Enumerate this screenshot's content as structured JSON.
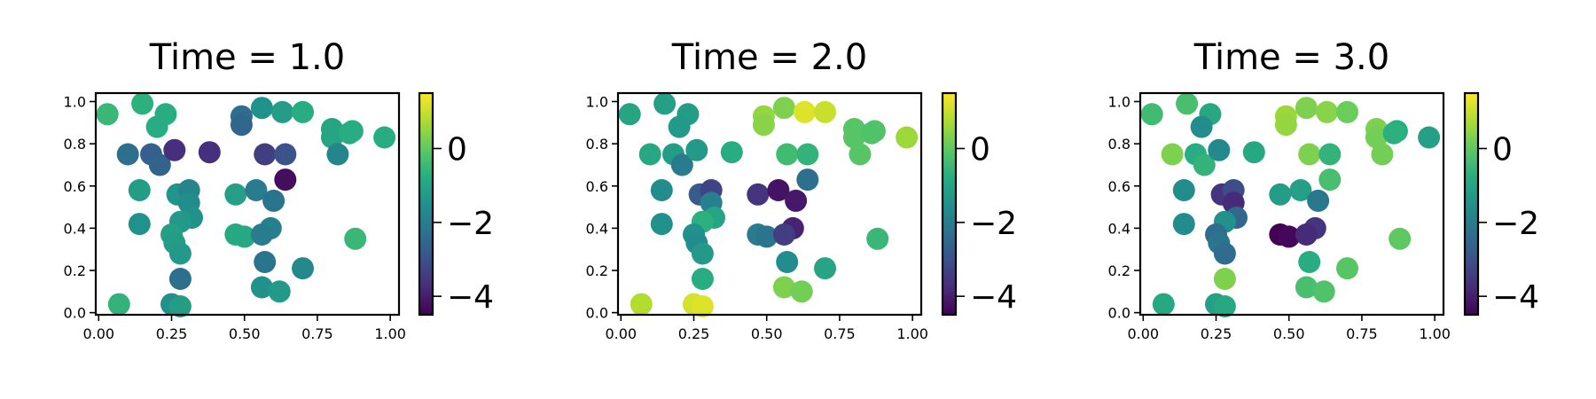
{
  "chart_data": [
    {
      "type": "scatter",
      "title": "Time = 1.0",
      "xlim": [
        -0.01,
        1.03
      ],
      "ylim": [
        -0.01,
        1.04
      ],
      "xticks": [
        "0.00",
        "0.25",
        "0.50",
        "0.75",
        "1.00"
      ],
      "yticks": [
        "0.0",
        "0.2",
        "0.4",
        "0.6",
        "0.8",
        "1.0"
      ],
      "colorbar": {
        "colormap": "viridis",
        "range": [
          -4.5,
          1.5
        ],
        "ticks": [
          "0",
          "−2",
          "−4"
        ]
      },
      "points": [
        {
          "x": 0.03,
          "y": 0.94,
          "c": -0.5
        },
        {
          "x": 0.15,
          "y": 0.99,
          "c": -0.7
        },
        {
          "x": 0.23,
          "y": 0.94,
          "c": -0.8
        },
        {
          "x": 0.2,
          "y": 0.88,
          "c": -0.8
        },
        {
          "x": 0.1,
          "y": 0.75,
          "c": -2.3
        },
        {
          "x": 0.18,
          "y": 0.75,
          "c": -2.7
        },
        {
          "x": 0.21,
          "y": 0.7,
          "c": -2.6
        },
        {
          "x": 0.26,
          "y": 0.77,
          "c": -3.7
        },
        {
          "x": 0.38,
          "y": 0.76,
          "c": -3.7
        },
        {
          "x": 0.14,
          "y": 0.58,
          "c": -1.2
        },
        {
          "x": 0.14,
          "y": 0.42,
          "c": -1.5
        },
        {
          "x": 0.27,
          "y": 0.56,
          "c": -1.4
        },
        {
          "x": 0.31,
          "y": 0.58,
          "c": -1.8
        },
        {
          "x": 0.31,
          "y": 0.52,
          "c": -1.6
        },
        {
          "x": 0.32,
          "y": 0.45,
          "c": -1.5
        },
        {
          "x": 0.28,
          "y": 0.43,
          "c": -1.3
        },
        {
          "x": 0.25,
          "y": 0.37,
          "c": -1.1
        },
        {
          "x": 0.26,
          "y": 0.33,
          "c": -1.2
        },
        {
          "x": 0.28,
          "y": 0.28,
          "c": -1.3
        },
        {
          "x": 0.28,
          "y": 0.16,
          "c": -2.3
        },
        {
          "x": 0.25,
          "y": 0.04,
          "c": -1.5
        },
        {
          "x": 0.28,
          "y": 0.03,
          "c": -1.2
        },
        {
          "x": 0.07,
          "y": 0.04,
          "c": -0.6
        },
        {
          "x": 0.49,
          "y": 0.93,
          "c": -2.4
        },
        {
          "x": 0.49,
          "y": 0.89,
          "c": -2.5
        },
        {
          "x": 0.56,
          "y": 0.97,
          "c": -1.5
        },
        {
          "x": 0.63,
          "y": 0.95,
          "c": -1.2
        },
        {
          "x": 0.7,
          "y": 0.95,
          "c": -0.8
        },
        {
          "x": 0.57,
          "y": 0.75,
          "c": -3.4
        },
        {
          "x": 0.64,
          "y": 0.75,
          "c": -3.0
        },
        {
          "x": 0.64,
          "y": 0.63,
          "c": -4.3
        },
        {
          "x": 0.47,
          "y": 0.56,
          "c": -1.1
        },
        {
          "x": 0.54,
          "y": 0.58,
          "c": -2.0
        },
        {
          "x": 0.6,
          "y": 0.53,
          "c": -2.2
        },
        {
          "x": 0.47,
          "y": 0.37,
          "c": -0.9
        },
        {
          "x": 0.5,
          "y": 0.36,
          "c": -0.9
        },
        {
          "x": 0.59,
          "y": 0.4,
          "c": -1.9
        },
        {
          "x": 0.56,
          "y": 0.37,
          "c": -2.0
        },
        {
          "x": 0.57,
          "y": 0.24,
          "c": -2.2
        },
        {
          "x": 0.56,
          "y": 0.12,
          "c": -1.5
        },
        {
          "x": 0.62,
          "y": 0.1,
          "c": -1.3
        },
        {
          "x": 0.7,
          "y": 0.21,
          "c": -1.7
        },
        {
          "x": 0.8,
          "y": 0.87,
          "c": -1.0
        },
        {
          "x": 0.8,
          "y": 0.83,
          "c": -1.0
        },
        {
          "x": 0.87,
          "y": 0.86,
          "c": -0.8
        },
        {
          "x": 0.86,
          "y": 0.85,
          "c": -0.8
        },
        {
          "x": 0.82,
          "y": 0.75,
          "c": -1.8
        },
        {
          "x": 0.98,
          "y": 0.83,
          "c": -0.8
        },
        {
          "x": 0.88,
          "y": 0.35,
          "c": -0.5
        }
      ]
    },
    {
      "type": "scatter",
      "title": "Time = 2.0",
      "xlim": [
        -0.01,
        1.03
      ],
      "ylim": [
        -0.01,
        1.04
      ],
      "xticks": [
        "0.00",
        "0.25",
        "0.50",
        "0.75",
        "1.00"
      ],
      "yticks": [
        "0.0",
        "0.2",
        "0.4",
        "0.6",
        "0.8",
        "1.0"
      ],
      "colorbar": {
        "colormap": "viridis",
        "range": [
          -4.5,
          1.5
        ],
        "ticks": [
          "0",
          "−2",
          "−4"
        ]
      },
      "points": [
        {
          "x": 0.03,
          "y": 0.94,
          "c": -1.0
        },
        {
          "x": 0.15,
          "y": 0.99,
          "c": -1.1
        },
        {
          "x": 0.23,
          "y": 0.94,
          "c": -1.2
        },
        {
          "x": 0.2,
          "y": 0.88,
          "c": -1.3
        },
        {
          "x": 0.1,
          "y": 0.75,
          "c": -0.9
        },
        {
          "x": 0.18,
          "y": 0.75,
          "c": -1.2
        },
        {
          "x": 0.21,
          "y": 0.7,
          "c": -2.0
        },
        {
          "x": 0.26,
          "y": 0.77,
          "c": -1.3
        },
        {
          "x": 0.38,
          "y": 0.76,
          "c": -0.8
        },
        {
          "x": 0.14,
          "y": 0.58,
          "c": -1.6
        },
        {
          "x": 0.14,
          "y": 0.42,
          "c": -1.5
        },
        {
          "x": 0.27,
          "y": 0.56,
          "c": -2.8
        },
        {
          "x": 0.31,
          "y": 0.58,
          "c": -3.3
        },
        {
          "x": 0.31,
          "y": 0.52,
          "c": -1.9
        },
        {
          "x": 0.32,
          "y": 0.45,
          "c": -1.0
        },
        {
          "x": 0.28,
          "y": 0.43,
          "c": -0.7
        },
        {
          "x": 0.25,
          "y": 0.37,
          "c": -1.5
        },
        {
          "x": 0.26,
          "y": 0.33,
          "c": -1.6
        },
        {
          "x": 0.28,
          "y": 0.28,
          "c": -1.3
        },
        {
          "x": 0.28,
          "y": 0.16,
          "c": -0.8
        },
        {
          "x": 0.25,
          "y": 0.04,
          "c": 1.1
        },
        {
          "x": 0.28,
          "y": 0.03,
          "c": 1.2
        },
        {
          "x": 0.07,
          "y": 0.04,
          "c": 0.8
        },
        {
          "x": 0.49,
          "y": 0.93,
          "c": 0.5
        },
        {
          "x": 0.49,
          "y": 0.89,
          "c": 0.4
        },
        {
          "x": 0.56,
          "y": 0.97,
          "c": 0.3
        },
        {
          "x": 0.63,
          "y": 0.95,
          "c": 1.2
        },
        {
          "x": 0.7,
          "y": 0.95,
          "c": 1.0
        },
        {
          "x": 0.57,
          "y": 0.75,
          "c": -0.4
        },
        {
          "x": 0.64,
          "y": 0.75,
          "c": -0.6
        },
        {
          "x": 0.64,
          "y": 0.63,
          "c": -2.3
        },
        {
          "x": 0.47,
          "y": 0.56,
          "c": -3.6
        },
        {
          "x": 0.54,
          "y": 0.58,
          "c": -4.2
        },
        {
          "x": 0.6,
          "y": 0.53,
          "c": -4.1
        },
        {
          "x": 0.47,
          "y": 0.37,
          "c": -2.0
        },
        {
          "x": 0.5,
          "y": 0.36,
          "c": -2.2
        },
        {
          "x": 0.59,
          "y": 0.4,
          "c": -3.9
        },
        {
          "x": 0.56,
          "y": 0.37,
          "c": -3.4
        },
        {
          "x": 0.57,
          "y": 0.24,
          "c": -1.6
        },
        {
          "x": 0.56,
          "y": 0.12,
          "c": 0.3
        },
        {
          "x": 0.62,
          "y": 0.1,
          "c": 0.2
        },
        {
          "x": 0.7,
          "y": 0.21,
          "c": -1.0
        },
        {
          "x": 0.8,
          "y": 0.87,
          "c": -0.1
        },
        {
          "x": 0.8,
          "y": 0.83,
          "c": -0.1
        },
        {
          "x": 0.87,
          "y": 0.86,
          "c": -0.2
        },
        {
          "x": 0.86,
          "y": 0.85,
          "c": -0.2
        },
        {
          "x": 0.82,
          "y": 0.75,
          "c": -0.1
        },
        {
          "x": 0.98,
          "y": 0.83,
          "c": 0.6
        },
        {
          "x": 0.88,
          "y": 0.35,
          "c": -0.5
        }
      ]
    },
    {
      "type": "scatter",
      "title": "Time = 3.0",
      "xlim": [
        -0.01,
        1.03
      ],
      "ylim": [
        -0.01,
        1.04
      ],
      "xticks": [
        "0.00",
        "0.25",
        "0.50",
        "0.75",
        "1.00"
      ],
      "yticks": [
        "0.0",
        "0.2",
        "0.4",
        "0.6",
        "0.8",
        "1.0"
      ],
      "colorbar": {
        "colormap": "viridis",
        "range": [
          -4.5,
          1.5
        ],
        "ticks": [
          "0",
          "−2",
          "−4"
        ]
      },
      "points": [
        {
          "x": 0.03,
          "y": 0.94,
          "c": -0.4
        },
        {
          "x": 0.15,
          "y": 0.99,
          "c": -0.3
        },
        {
          "x": 0.23,
          "y": 0.94,
          "c": -0.9
        },
        {
          "x": 0.2,
          "y": 0.88,
          "c": -1.6
        },
        {
          "x": 0.1,
          "y": 0.75,
          "c": 0.3
        },
        {
          "x": 0.18,
          "y": 0.75,
          "c": -0.8
        },
        {
          "x": 0.21,
          "y": 0.7,
          "c": -0.6
        },
        {
          "x": 0.26,
          "y": 0.77,
          "c": -1.7
        },
        {
          "x": 0.38,
          "y": 0.76,
          "c": -0.9
        },
        {
          "x": 0.14,
          "y": 0.58,
          "c": -1.6
        },
        {
          "x": 0.14,
          "y": 0.42,
          "c": -1.6
        },
        {
          "x": 0.27,
          "y": 0.56,
          "c": -3.6
        },
        {
          "x": 0.31,
          "y": 0.58,
          "c": -3.1
        },
        {
          "x": 0.31,
          "y": 0.52,
          "c": -3.8
        },
        {
          "x": 0.32,
          "y": 0.45,
          "c": -2.5
        },
        {
          "x": 0.28,
          "y": 0.43,
          "c": -1.5
        },
        {
          "x": 0.25,
          "y": 0.37,
          "c": -2.4
        },
        {
          "x": 0.26,
          "y": 0.33,
          "c": -2.2
        },
        {
          "x": 0.28,
          "y": 0.28,
          "c": -2.4
        },
        {
          "x": 0.28,
          "y": 0.16,
          "c": 0.3
        },
        {
          "x": 0.25,
          "y": 0.04,
          "c": -1.1
        },
        {
          "x": 0.28,
          "y": 0.03,
          "c": -0.9
        },
        {
          "x": 0.07,
          "y": 0.04,
          "c": -0.9
        },
        {
          "x": 0.49,
          "y": 0.93,
          "c": 0.6
        },
        {
          "x": 0.49,
          "y": 0.89,
          "c": 0.5
        },
        {
          "x": 0.56,
          "y": 0.97,
          "c": 0.3
        },
        {
          "x": 0.63,
          "y": 0.95,
          "c": 0.4
        },
        {
          "x": 0.7,
          "y": 0.95,
          "c": 0.1
        },
        {
          "x": 0.57,
          "y": 0.75,
          "c": 0.3
        },
        {
          "x": 0.64,
          "y": 0.75,
          "c": -0.6
        },
        {
          "x": 0.64,
          "y": 0.63,
          "c": -0.3
        },
        {
          "x": 0.47,
          "y": 0.56,
          "c": -1.2
        },
        {
          "x": 0.54,
          "y": 0.58,
          "c": -1.1
        },
        {
          "x": 0.6,
          "y": 0.53,
          "c": -2.1
        },
        {
          "x": 0.47,
          "y": 0.37,
          "c": -4.5
        },
        {
          "x": 0.5,
          "y": 0.36,
          "c": -4.4
        },
        {
          "x": 0.59,
          "y": 0.4,
          "c": -3.6
        },
        {
          "x": 0.56,
          "y": 0.37,
          "c": -3.8
        },
        {
          "x": 0.57,
          "y": 0.24,
          "c": -0.8
        },
        {
          "x": 0.56,
          "y": 0.12,
          "c": -0.3
        },
        {
          "x": 0.62,
          "y": 0.1,
          "c": -0.2
        },
        {
          "x": 0.7,
          "y": 0.21,
          "c": -0.1
        },
        {
          "x": 0.8,
          "y": 0.87,
          "c": 0.3
        },
        {
          "x": 0.8,
          "y": 0.83,
          "c": 0.2
        },
        {
          "x": 0.87,
          "y": 0.86,
          "c": -0.8
        },
        {
          "x": 0.86,
          "y": 0.85,
          "c": -0.7
        },
        {
          "x": 0.82,
          "y": 0.75,
          "c": 0.2
        },
        {
          "x": 0.98,
          "y": 0.83,
          "c": -1.1
        },
        {
          "x": 0.88,
          "y": 0.35,
          "c": 0.0
        }
      ]
    }
  ]
}
